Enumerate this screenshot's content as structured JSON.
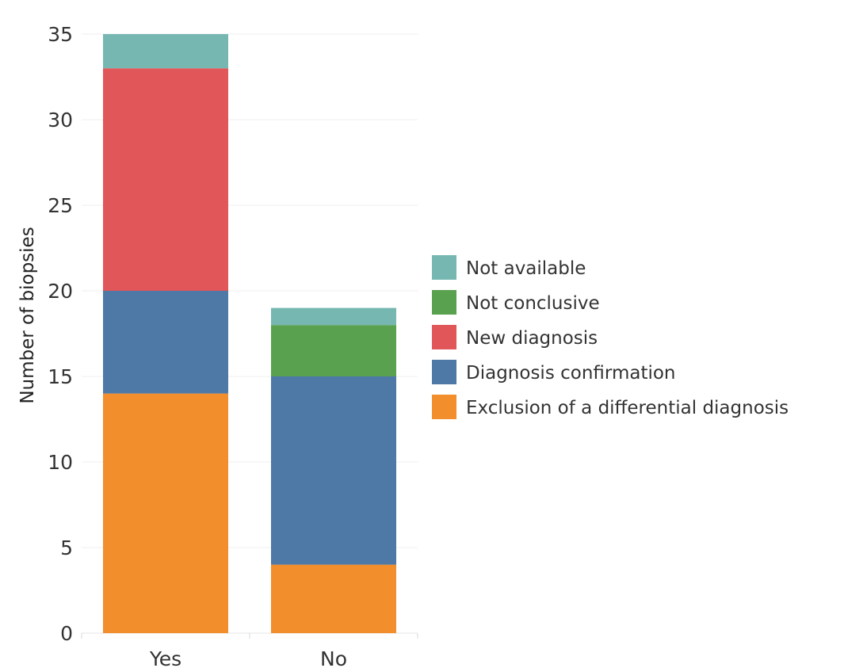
{
  "chart_data": {
    "type": "bar",
    "stacked": true,
    "title": "",
    "xlabel": "",
    "ylabel": "Number of biopsies",
    "ylim": [
      0,
      35
    ],
    "yticks": [
      0,
      5,
      10,
      15,
      20,
      25,
      30,
      35
    ],
    "categories": [
      "Yes",
      "No"
    ],
    "series": [
      {
        "name": "Exclusion of a differential diagnosis",
        "color": "#f28e2b",
        "values": [
          14,
          4
        ]
      },
      {
        "name": "Diagnosis confirmation",
        "color": "#4e79a7",
        "values": [
          6,
          11
        ]
      },
      {
        "name": "New diagnosis",
        "color": "#e15759",
        "values": [
          13,
          0
        ]
      },
      {
        "name": "Not conclusive",
        "color": "#59a14f",
        "values": [
          0,
          3
        ]
      },
      {
        "name": "Not available",
        "color": "#76b7b2",
        "values": [
          2,
          1
        ]
      }
    ],
    "legend": {
      "placement": "right",
      "order": [
        "Not available",
        "Not conclusive",
        "New diagnosis",
        "Diagnosis confirmation",
        "Exclusion of a differential diagnosis"
      ]
    },
    "grid": true
  }
}
